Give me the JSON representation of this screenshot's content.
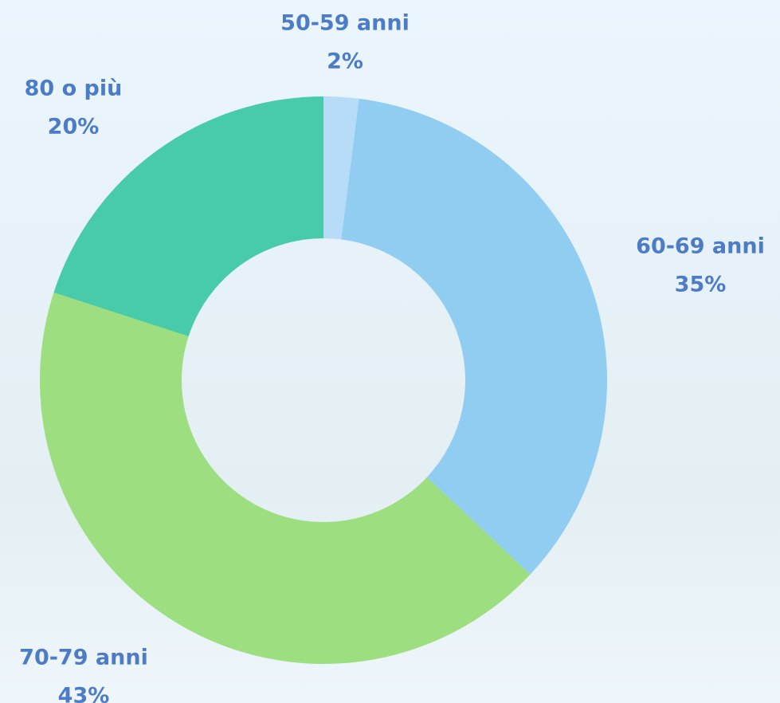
{
  "chart_data": {
    "type": "donut",
    "categories": [
      "50-59 anni",
      "60-69 anni",
      "70-79 anni",
      "80 o più"
    ],
    "values": [
      2,
      35,
      43,
      20
    ],
    "value_labels": [
      "2%",
      "35%",
      "43%",
      "20%"
    ],
    "colors": [
      "#b6dcf7",
      "#90cdf1",
      "#9ddf80",
      "#48cba8"
    ]
  }
}
